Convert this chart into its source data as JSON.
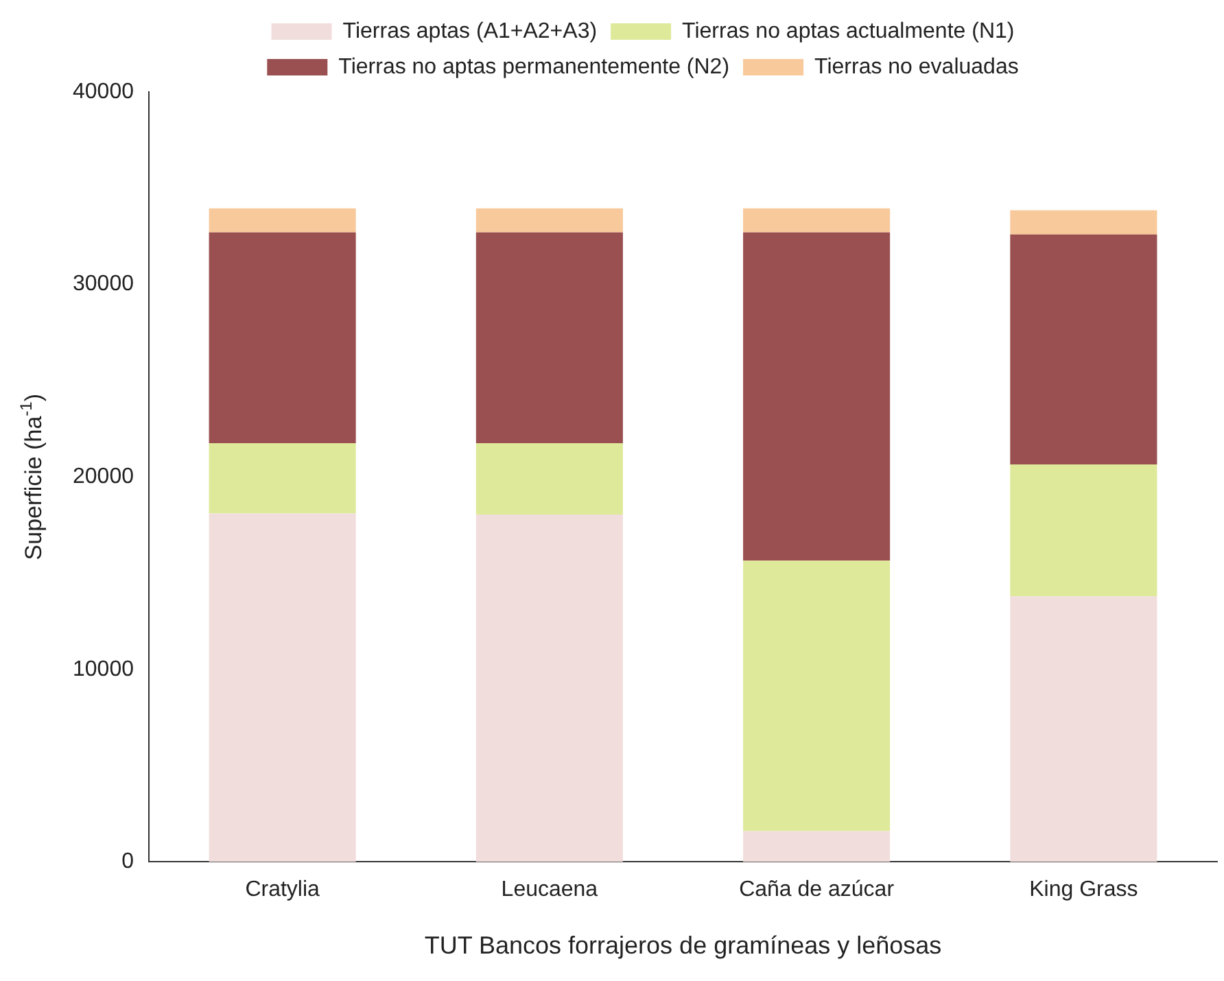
{
  "chart_data": {
    "type": "bar",
    "stacked": true,
    "xlabel": "TUT Bancos forrajeros de gramíneas y leñosas",
    "ylabel": "Superficie (ha$^{-1}$)",
    "categories": [
      "Cratylia",
      "Leucaena",
      "Caña de azúcar",
      "King Grass"
    ],
    "series": [
      {
        "name": "Tierras aptas (A1+A2+A3)",
        "color": "#f1dedc",
        "values": [
          18100,
          18050,
          1600,
          13800
        ]
      },
      {
        "name": "Tierras no aptas actualmente (N1)",
        "color": "#dfe99a",
        "values": [
          3650,
          3700,
          14050,
          6850
        ]
      },
      {
        "name": "Tierras no aptas permanentemente (N2)",
        "color": "#9a5050",
        "values": [
          10950,
          10950,
          17050,
          11950
        ]
      },
      {
        "name": "Tierras no evaluadas",
        "color": "#f8c99a",
        "values": [
          1250,
          1250,
          1250,
          1250
        ]
      }
    ],
    "ylim": [
      0,
      40000
    ],
    "yticks": [
      0,
      10000,
      20000,
      30000,
      40000
    ],
    "grid": false,
    "legend": "top"
  }
}
